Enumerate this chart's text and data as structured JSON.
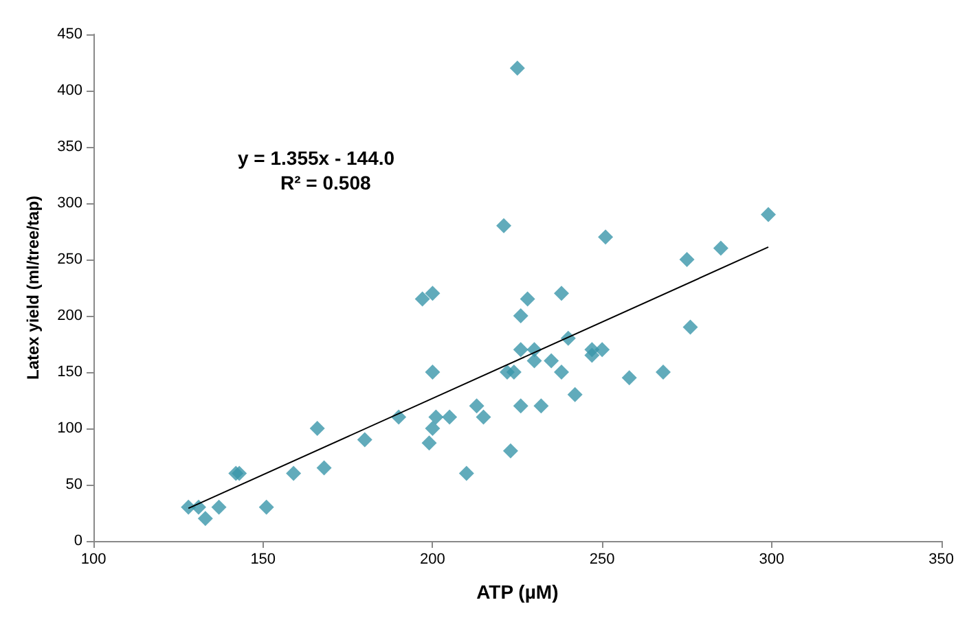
{
  "chart_data": {
    "type": "scatter",
    "xlabel": "ATP (µM)",
    "ylabel": "Latex yield (ml/tree/tap)",
    "xlim": [
      100,
      350
    ],
    "xticks": [
      100,
      150,
      200,
      250,
      300,
      350
    ],
    "ylim": [
      0,
      450
    ],
    "yticks": [
      0,
      50,
      100,
      150,
      200,
      250,
      300,
      350,
      400,
      450
    ],
    "grid": false,
    "marker": "diamond",
    "annotations": [
      "y = 1.355x - 144.0",
      "R² = 0.508"
    ],
    "series": [
      {
        "color": "#3a96aa",
        "x": [
          128,
          131,
          133,
          137,
          142,
          143,
          151,
          159,
          166,
          168,
          180,
          190,
          197,
          200,
          200,
          199,
          200,
          201,
          205,
          210,
          213,
          215,
          221,
          222,
          224,
          223,
          225,
          226,
          226,
          226,
          228,
          230,
          230,
          232,
          235,
          238,
          238,
          240,
          242,
          247,
          247,
          250,
          251,
          258,
          268,
          275,
          276,
          285,
          299
        ],
        "values": [
          30,
          30,
          20,
          30,
          60,
          60,
          30,
          60,
          100,
          65,
          90,
          110,
          215,
          220,
          150,
          87,
          100,
          110,
          110,
          60,
          120,
          110,
          280,
          150,
          150,
          80,
          420,
          200,
          120,
          170,
          215,
          170,
          160,
          120,
          160,
          220,
          150,
          180,
          130,
          170,
          165,
          170,
          270,
          145,
          150,
          250,
          190,
          260,
          290
        ]
      },
      {
        "type": "line",
        "color": "#000000",
        "marker": "none",
        "x": [
          128,
          299
        ],
        "values": [
          29,
          261
        ]
      }
    ]
  }
}
